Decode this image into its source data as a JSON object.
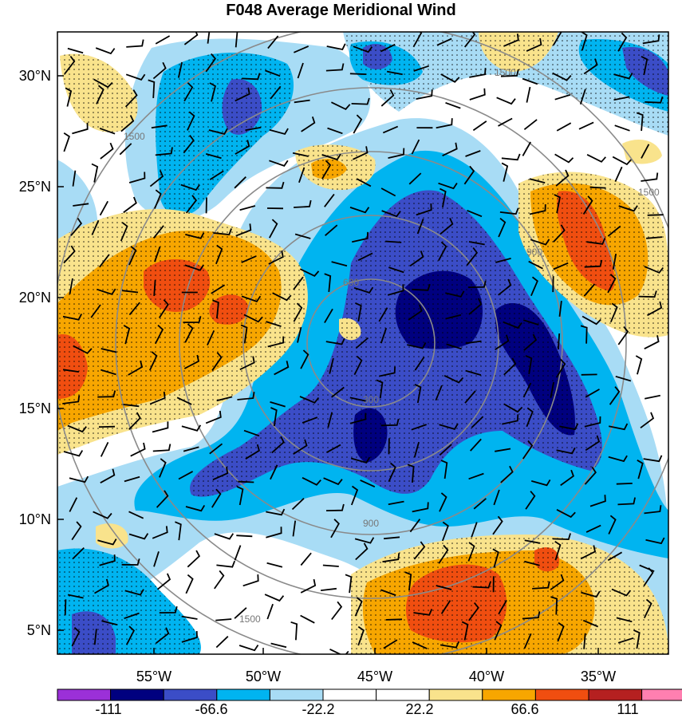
{
  "title": "F048 Average Meridional Wind",
  "map": {
    "lat_labels": [
      "30°N",
      "25°N",
      "20°N",
      "15°N",
      "10°N",
      "5°N"
    ],
    "lon_labels": [
      "55°W",
      "50°W",
      "45°W",
      "40°W",
      "35°W"
    ],
    "range_rings": [
      "300",
      "600",
      "900",
      "1500"
    ],
    "stipple": "dotted"
  },
  "colorbar": {
    "tick_labels": [
      "-111",
      "-66.6",
      "-22.2",
      "22.2",
      "66.6",
      "111"
    ],
    "colors": [
      "#9b30d8",
      "#00007f",
      "#3b4dc7",
      "#00b4f0",
      "#a8dcf5",
      "#ffffff",
      "#ffffff",
      "#f9e38c",
      "#f7a600",
      "#f04e10",
      "#b52020",
      "#ff7fb0"
    ]
  },
  "colors": {
    "strong_neg": "#00007f",
    "neg": "#3b4dc7",
    "mid_neg": "#00b4f0",
    "weak_neg": "#a8dcf5",
    "weak_pos": "#f9e38c",
    "pos": "#f7a600",
    "strong_pos": "#f04e10"
  }
}
